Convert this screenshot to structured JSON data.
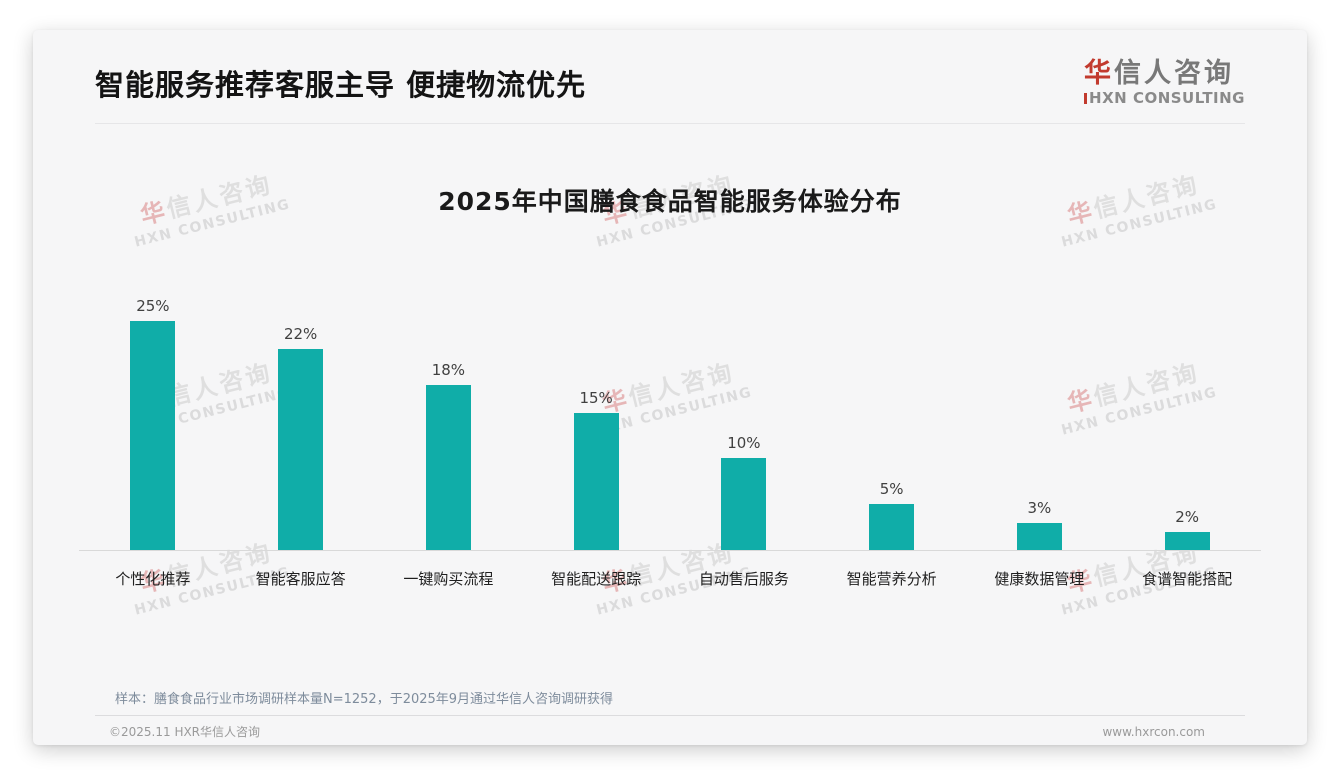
{
  "page": {
    "title": "智能服务推荐客服主导 便捷物流优先"
  },
  "logo": {
    "cn_first": "华",
    "cn_rest": "信人咨询",
    "en": "HXN CONSULTING"
  },
  "chart_data": {
    "type": "bar",
    "title": "2025年中国膳食食品智能服务体验分布",
    "categories": [
      "个性化推荐",
      "智能客服应答",
      "一键购买流程",
      "智能配送跟踪",
      "自动售后服务",
      "智能营养分析",
      "健康数据管理",
      "食谱智能搭配"
    ],
    "values": [
      25,
      22,
      18,
      15,
      10,
      5,
      3,
      2
    ],
    "value_labels": [
      "25%",
      "22%",
      "18%",
      "15%",
      "10%",
      "5%",
      "3%",
      "2%"
    ],
    "unit": "%",
    "bar_color": "#10ada8",
    "ylim": [
      0,
      28
    ],
    "grid": false,
    "legend": false,
    "xlabel": "",
    "ylabel": ""
  },
  "watermark": {
    "line1_first": "华",
    "line1_rest": "信人咨询",
    "line2": "HXN CONSULTING"
  },
  "footer": {
    "note": "样本：膳食食品行业市场调研样本量N=1252，于2025年9月通过华信人咨询调研获得",
    "copyright": "©2025.11 HXR华信人咨询",
    "website": "www.hxrcon.com"
  }
}
